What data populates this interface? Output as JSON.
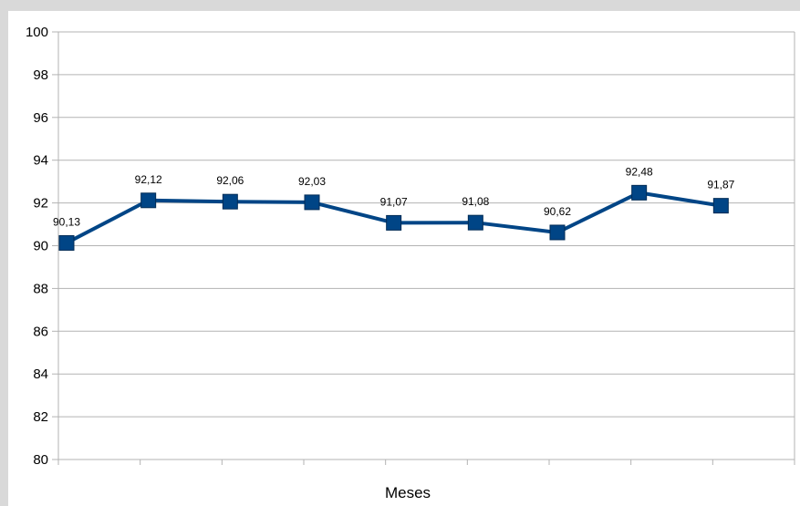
{
  "chart_data": {
    "type": "line",
    "title": "",
    "xlabel": "Meses",
    "ylabel": "",
    "ylim": [
      80,
      100
    ],
    "y_ticks": [
      "80",
      "82",
      "84",
      "86",
      "88",
      "90",
      "92",
      "94",
      "96",
      "98",
      "100"
    ],
    "grid": true,
    "legend": "none",
    "series": [
      {
        "values": [
          90.13,
          92.12,
          92.06,
          92.03,
          91.07,
          91.08,
          90.62,
          92.48,
          91.87
        ],
        "labels": [
          "90,13",
          "92,12",
          "92,06",
          "92,03",
          "91,07",
          "91,08",
          "90,62",
          "92,48",
          "91,87"
        ],
        "color": "#004586",
        "marker": "square"
      }
    ]
  }
}
